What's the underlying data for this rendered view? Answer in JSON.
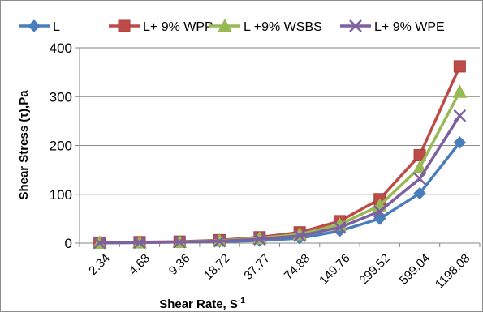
{
  "chart_data": {
    "type": "line",
    "title": "",
    "xlabel": "Shear Rate, S",
    "xlabel_superscript": "-1",
    "ylabel": "Shear Stress (τ),Pa",
    "categories": [
      "2.34",
      "4.68",
      "9.36",
      "18.72",
      "37.77",
      "74.88",
      "149.76",
      "299.52",
      "599.04",
      "1198.08"
    ],
    "ylim": [
      0,
      400
    ],
    "yticks": [
      0,
      100,
      200,
      300,
      400
    ],
    "grid": "horizontal",
    "legend_position": "top",
    "series": [
      {
        "name": "L",
        "color": "#4a7ebb",
        "marker": "diamond",
        "values": [
          0.5,
          1,
          2,
          3,
          5,
          10,
          25,
          50,
          102,
          206
        ]
      },
      {
        "name": "L+ 9% WPP",
        "color": "#be4b48",
        "marker": "square",
        "values": [
          1,
          2,
          3,
          6,
          12,
          22,
          45,
          90,
          180,
          362
        ]
      },
      {
        "name": "L +9% WSBS",
        "color": "#98b954",
        "marker": "triangle",
        "values": [
          0.8,
          1.5,
          2.5,
          5,
          10,
          18,
          38,
          77,
          155,
          310
        ]
      },
      {
        "name": "L+ 9% WPE",
        "color": "#7d60a0",
        "marker": "x",
        "values": [
          0.6,
          1.2,
          2.2,
          4,
          8,
          15,
          32,
          65,
          132,
          261
        ]
      }
    ]
  }
}
